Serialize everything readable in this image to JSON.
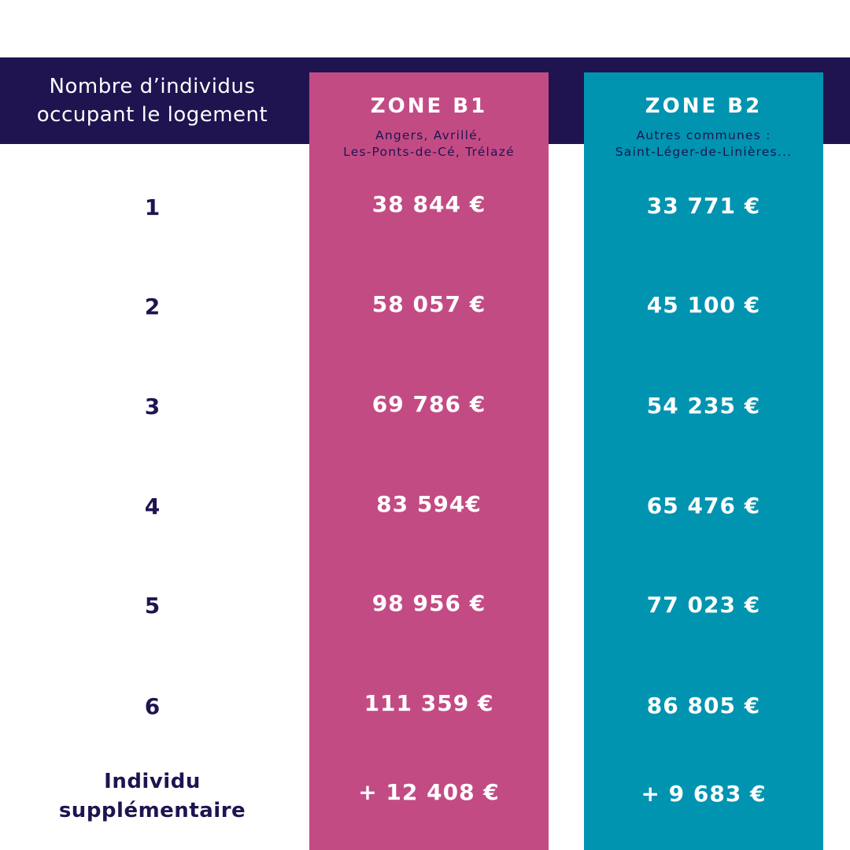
{
  "header": {
    "occupants_label": "Nombre d’individus\noccupant le logement"
  },
  "zones": [
    {
      "title": "ZONE B1",
      "subtitle": "Angers, Avrillé,\nLes-Ponts-de-Cé, Trélazé",
      "color": "#c34b84",
      "values": [
        "38 844 €",
        "58 057 €",
        "69 786 €",
        "83 594€",
        "98 956 €",
        "111 359 €",
        "+ 12 408 €"
      ]
    },
    {
      "title": "ZONE B2",
      "subtitle": "Autres communes :\nSaint-Léger-de-Linières...",
      "color": "#0094b0",
      "values": [
        "33 771 €",
        "45 100 €",
        "54 235 €",
        "65 476 €",
        "77 023 €",
        "86 805 €",
        "+ 9 683 €"
      ]
    }
  ],
  "rows": [
    "1",
    "2",
    "3",
    "4",
    "5",
    "6",
    "Individu\nsupplémentaire"
  ],
  "colors": {
    "header_bg": "#1f1450",
    "text_dark": "#1f1450"
  }
}
